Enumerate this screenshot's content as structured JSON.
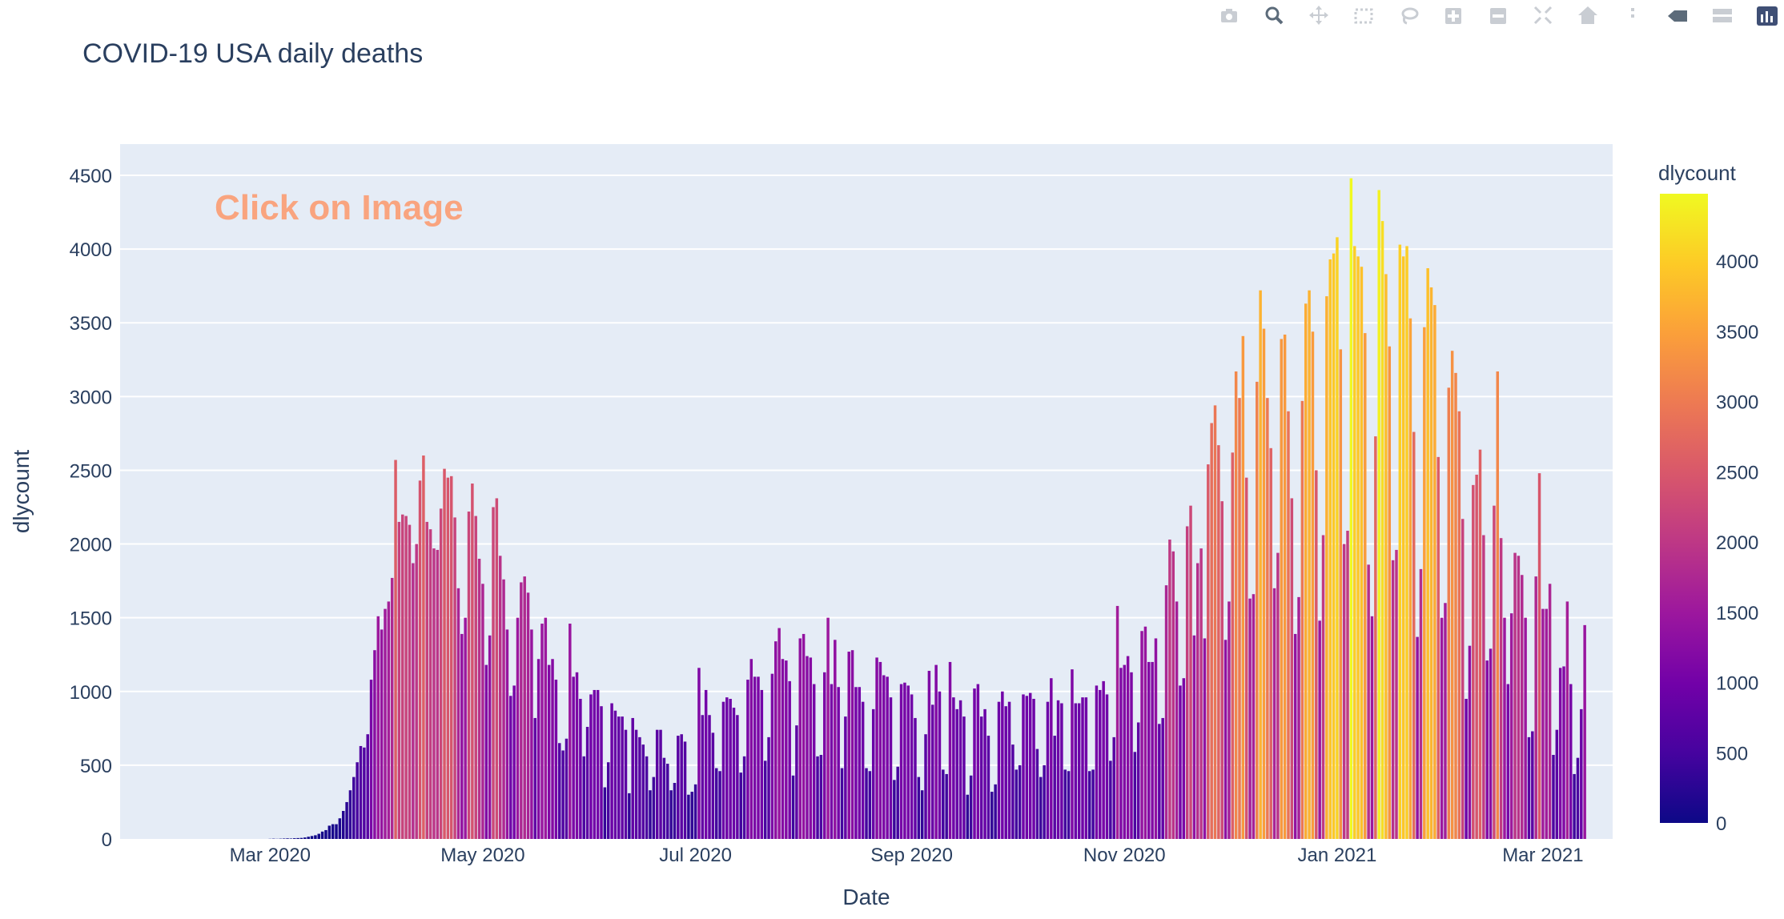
{
  "chart_data": {
    "type": "bar",
    "title": "COVID-19 USA daily deaths",
    "xlabel": "Date",
    "ylabel": "dlycount",
    "x_start": "2020-01-22",
    "x_end": "2021-03-20",
    "x_ticks": [
      "Mar 2020",
      "May 2020",
      "Jul 2020",
      "Sep 2020",
      "Nov 2020",
      "Jan 2021",
      "Mar 2021"
    ],
    "y_ticks": [
      0,
      500,
      1000,
      1500,
      2000,
      2500,
      3000,
      3500,
      4000,
      4500
    ],
    "ylim": [
      0,
      4700
    ],
    "grid": true,
    "annotation": "Click on Image",
    "colorbar": {
      "title": "dlycount",
      "ticks": [
        0,
        500,
        1000,
        1500,
        2000,
        2500,
        3000,
        3500,
        4000
      ],
      "range": [
        0,
        4480
      ],
      "colorscale": [
        "#0d0887",
        "#46039f",
        "#7201a8",
        "#9c179e",
        "#bd3786",
        "#d8576b",
        "#ed7953",
        "#fb9f3a",
        "#fdca26",
        "#f0f921"
      ]
    },
    "values": [
      0,
      0,
      0,
      0,
      0,
      0,
      0,
      0,
      0,
      0,
      0,
      0,
      0,
      0,
      0,
      0,
      0,
      0,
      0,
      0,
      0,
      0,
      0,
      0,
      0,
      0,
      0,
      0,
      0,
      0,
      0,
      0,
      0,
      0,
      0,
      0,
      0,
      0,
      0,
      1,
      2,
      1,
      2,
      3,
      4,
      3,
      5,
      6,
      7,
      10,
      15,
      20,
      25,
      35,
      50,
      60,
      90,
      100,
      100,
      140,
      190,
      250,
      330,
      420,
      520,
      630,
      620,
      710,
      1080,
      1280,
      1510,
      1420,
      1560,
      1610,
      1770,
      2570,
      2150,
      2200,
      2190,
      2130,
      1870,
      2000,
      2430,
      2600,
      2150,
      2100,
      1970,
      1960,
      2240,
      2510,
      2450,
      2460,
      2180,
      1700,
      1390,
      1500,
      2220,
      2410,
      2190,
      1900,
      1730,
      1180,
      1380,
      2250,
      2310,
      1920,
      1760,
      1420,
      970,
      1040,
      1500,
      1740,
      1780,
      1670,
      1420,
      820,
      1220,
      1460,
      1500,
      1180,
      1220,
      1080,
      650,
      600,
      680,
      1460,
      1100,
      1130,
      950,
      560,
      760,
      980,
      1010,
      1010,
      900,
      350,
      520,
      920,
      870,
      830,
      830,
      740,
      310,
      820,
      740,
      690,
      640,
      560,
      330,
      420,
      740,
      740,
      550,
      510,
      330,
      380,
      700,
      710,
      660,
      300,
      320,
      370,
      1160,
      840,
      1010,
      840,
      720,
      480,
      460,
      930,
      960,
      950,
      890,
      840,
      450,
      560,
      1080,
      1220,
      1100,
      1100,
      1010,
      530,
      690,
      1120,
      1340,
      1430,
      1220,
      1210,
      1070,
      430,
      770,
      1360,
      1390,
      1240,
      1230,
      1050,
      560,
      570,
      1130,
      1500,
      1050,
      1350,
      1030,
      480,
      830,
      1270,
      1280,
      1030,
      1030,
      930,
      480,
      460,
      880,
      1230,
      1200,
      1110,
      1100,
      960,
      400,
      490,
      1050,
      1060,
      1040,
      980,
      820,
      420,
      330,
      710,
      1140,
      910,
      1180,
      1000,
      470,
      440,
      1200,
      960,
      880,
      940,
      830,
      300,
      430,
      1020,
      1050,
      830,
      880,
      700,
      320,
      370,
      930,
      1000,
      900,
      930,
      640,
      470,
      500,
      980,
      970,
      990,
      950,
      610,
      420,
      500,
      930,
      1090,
      700,
      940,
      920,
      470,
      460,
      1150,
      920,
      920,
      960,
      960,
      460,
      470,
      1040,
      1010,
      1070,
      980,
      530,
      690,
      1580,
      1160,
      1180,
      1240,
      1130,
      590,
      790,
      1410,
      1440,
      1200,
      1200,
      1360,
      780,
      820,
      1720,
      2030,
      1950,
      1610,
      1040,
      1090,
      2120,
      2260,
      1380,
      1870,
      1970,
      1360,
      2540,
      2820,
      2940,
      2670,
      2290,
      1350,
      1610,
      2620,
      3170,
      2990,
      3410,
      2450,
      1630,
      1660,
      3100,
      3720,
      3460,
      2990,
      2650,
      1700,
      1940,
      3390,
      3420,
      2900,
      2310,
      1390,
      1640,
      2970,
      3630,
      3720,
      3440,
      2500,
      1480,
      2060,
      3680,
      3930,
      3970,
      4080,
      3320,
      2000,
      2090,
      4480,
      4020,
      3950,
      3880,
      3430,
      1860,
      1510,
      2730,
      4400,
      4190,
      3830,
      3340,
      1890,
      1960,
      4030,
      3950,
      4020,
      3530,
      2760,
      1370,
      1830,
      3470,
      3870,
      3740,
      3620,
      2590,
      1500,
      1600,
      3060,
      3310,
      3160,
      2900,
      2170,
      950,
      1310,
      2400,
      2470,
      2640,
      2060,
      1210,
      1290,
      2260,
      3170,
      2040,
      1500,
      1050,
      1530,
      1940,
      1920,
      1790,
      1500,
      690,
      730,
      1780,
      2480,
      1560,
      1560,
      1730,
      570,
      740,
      1160,
      1170,
      1610,
      1050,
      440,
      550,
      880,
      1450
    ]
  }
}
